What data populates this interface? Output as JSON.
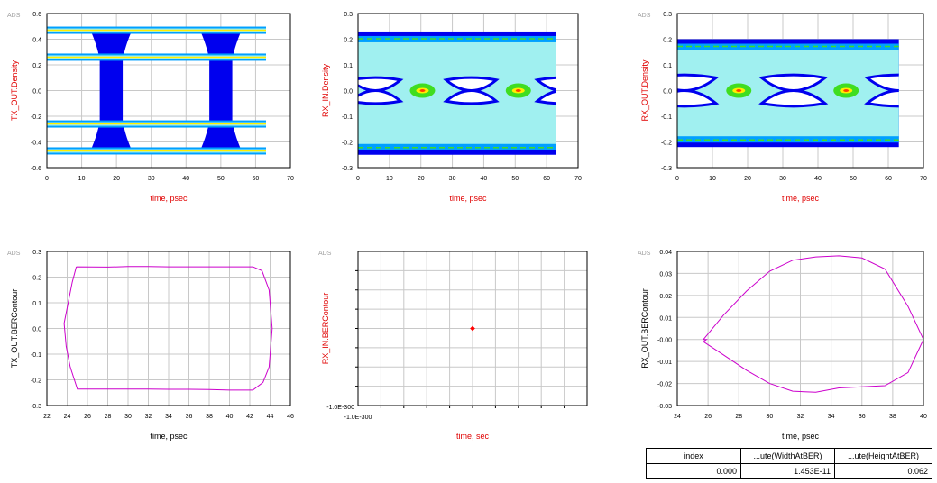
{
  "colors": {
    "red_label": "#e00000",
    "black_label": "#000000",
    "grid": "#c8c8c8",
    "frame": "#000000",
    "contour": "#cc00cc",
    "point": "#ff0000",
    "eye_dark": "#0000ee",
    "eye_mid": "#00a0ff",
    "eye_light": "#a0f0f0",
    "eye_green": "#40dd20",
    "eye_yellow": "#ffee00",
    "eye_red": "#ff4000"
  },
  "chart_data": [
    {
      "id": "tx_density",
      "type": "heatmap",
      "logo": "ADS",
      "ylabel": "TX_OUT.Density",
      "xlabel": "time, psec",
      "label_color": "red",
      "xlim": [
        0,
        70
      ],
      "ylim": [
        -0.6,
        0.6
      ],
      "xticks": [
        "0",
        "10",
        "20",
        "30",
        "40",
        "50",
        "60",
        "70"
      ],
      "yticks": [
        "-0.6",
        "-0.4",
        "-0.2",
        "0.0",
        "0.2",
        "0.4",
        "0.6"
      ],
      "x_extent": [
        0,
        63
      ],
      "levels": [
        -0.47,
        -0.26,
        0.26,
        0.47
      ],
      "crossings_center": [
        18.5,
        50
      ],
      "crossings_halfwidth": 6
    },
    {
      "id": "rx_in_density",
      "type": "heatmap",
      "ylabel": "RX_IN.Density",
      "xlabel": "time, psec",
      "label_color": "red",
      "xlim": [
        0,
        70
      ],
      "ylim": [
        -0.3,
        0.3
      ],
      "xticks": [
        "0",
        "10",
        "20",
        "30",
        "40",
        "50",
        "60",
        "70"
      ],
      "yticks": [
        "-0.3",
        "-0.2",
        "-0.1",
        "0.0",
        "0.1",
        "0.2",
        "0.3"
      ],
      "x_extent": [
        0,
        63
      ],
      "outer": [
        -0.25,
        0.23
      ],
      "eye_centers": [
        5.5,
        36,
        65
      ],
      "crossings_center": [
        20.5,
        51
      ],
      "eye_halfwidth": 8,
      "eye_halfheight": 0.075
    },
    {
      "id": "rx_out_density",
      "type": "heatmap",
      "logo": "ADS",
      "ylabel": "RX_OUT.Density",
      "xlabel": "time, psec",
      "label_color": "red",
      "xlim": [
        0,
        70
      ],
      "ylim": [
        -0.3,
        0.3
      ],
      "xticks": [
        "0",
        "10",
        "20",
        "30",
        "40",
        "50",
        "60",
        "70"
      ],
      "yticks": [
        "-0.3",
        "-0.2",
        "-0.1",
        "0.0",
        "0.1",
        "0.2",
        "0.3"
      ],
      "x_extent": [
        0,
        63
      ],
      "outer": [
        -0.22,
        0.2
      ],
      "eye_centers": [
        2,
        33,
        63
      ],
      "crossings_center": [
        17.5,
        48
      ],
      "eye_halfwidth": 9,
      "eye_halfheight": 0.09
    },
    {
      "id": "tx_ber_contour",
      "type": "line",
      "logo": "ADS",
      "ylabel": "TX_OUT.BERContour",
      "xlabel": "time, psec",
      "label_color": "black",
      "xlim": [
        22,
        46
      ],
      "ylim": [
        -0.3,
        0.3
      ],
      "xticks": [
        "22",
        "24",
        "26",
        "28",
        "30",
        "32",
        "34",
        "36",
        "38",
        "40",
        "42",
        "44",
        "46"
      ],
      "yticks": [
        "-0.3",
        "-0.2",
        "-0.1",
        "0.0",
        "0.1",
        "0.2",
        "0.3"
      ],
      "series": [
        {
          "x": [
            24.9,
            28,
            30,
            32,
            34,
            36,
            38,
            40,
            42.3,
            43.2,
            43.9,
            44.2,
            43.9,
            43.3,
            42.3,
            40,
            38,
            36,
            34,
            32,
            30,
            28,
            25,
            24.3,
            23.9,
            23.7,
            24.1,
            24.5,
            24.9
          ],
          "y": [
            0.24,
            0.239,
            0.241,
            0.241,
            0.24,
            0.24,
            0.24,
            0.24,
            0.24,
            0.225,
            0.15,
            0,
            -0.15,
            -0.21,
            -0.24,
            -0.24,
            -0.238,
            -0.237,
            -0.237,
            -0.236,
            -0.236,
            -0.236,
            -0.236,
            -0.15,
            -0.07,
            0.02,
            0.1,
            0.18,
            0.24
          ]
        }
      ]
    },
    {
      "id": "rx_in_ber_contour",
      "type": "scatter",
      "logo": "ADS",
      "ylabel": "RX_IN.BERContour",
      "xlabel": "time, sec",
      "label_color": "red",
      "xlim": [
        -1,
        1
      ],
      "ylim": [
        -1,
        1
      ],
      "xticks": [
        "-1.0E-300"
      ],
      "yticks": [
        "-1.0E-300"
      ],
      "series": [
        {
          "x": [
            0
          ],
          "y": [
            0
          ]
        }
      ]
    },
    {
      "id": "rx_out_ber_contour",
      "type": "line",
      "logo": "ADS",
      "ylabel": "RX_OUT.BERContour",
      "xlabel": "time, psec",
      "label_color": "black",
      "xlim": [
        24,
        40
      ],
      "ylim": [
        -0.03,
        0.04
      ],
      "xticks": [
        "24",
        "26",
        "28",
        "30",
        "32",
        "34",
        "36",
        "38",
        "40"
      ],
      "yticks": [
        "-0.03",
        "-0.02",
        "-0.01",
        "-0.00",
        "0.01",
        "0.02",
        "0.03",
        "0.04"
      ],
      "series": [
        {
          "x": [
            25.7,
            27,
            28.5,
            30,
            31.5,
            33,
            34.5,
            36,
            37.5,
            39,
            40,
            39,
            37.5,
            36,
            34.5,
            33,
            31.5,
            30,
            28.5,
            27,
            25.7,
            25.9,
            25.7
          ],
          "y": [
            0,
            0.011,
            0.022,
            0.031,
            0.036,
            0.0375,
            0.038,
            0.037,
            0.032,
            0.015,
            0,
            -0.015,
            -0.021,
            -0.0215,
            -0.022,
            -0.024,
            -0.0235,
            -0.02,
            -0.014,
            -0.007,
            -0.001,
            0,
            0
          ]
        }
      ]
    }
  ],
  "results_table": {
    "headers": [
      "index",
      "...ute(WidthAtBER)",
      "...ute(HeightAtBER)"
    ],
    "row": [
      "0.000",
      "1.453E-11",
      "0.062"
    ]
  }
}
